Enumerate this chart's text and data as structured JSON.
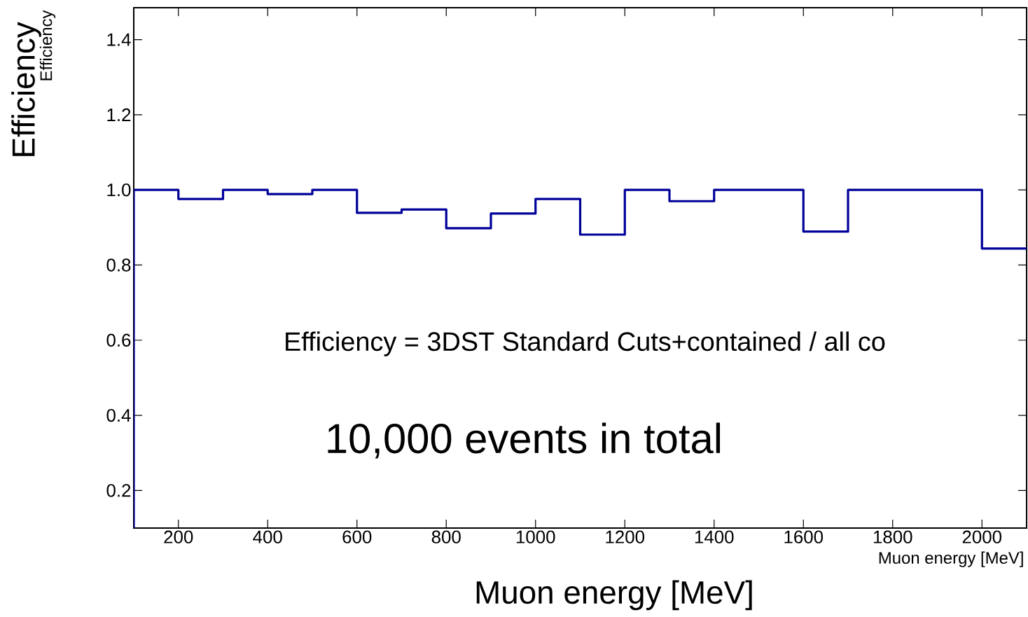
{
  "chart_data": {
    "type": "histogram",
    "xlabel": "Muon energy [MeV]",
    "ylabel": "Efficiency",
    "bins": [
      100,
      200,
      300,
      400,
      500,
      600,
      700,
      800,
      900,
      1000,
      1100,
      1200,
      1300,
      1400,
      1500,
      1600,
      1700,
      1800,
      1900,
      2000,
      2100
    ],
    "values": [
      1.0,
      0.976,
      1.0,
      0.989,
      1.0,
      0.939,
      0.948,
      0.898,
      0.937,
      0.976,
      0.881,
      1.0,
      0.97,
      1.0,
      1.0,
      0.889,
      1.0,
      1.0,
      1.0,
      0.844
    ],
    "color": "#000099",
    "xlim": [
      100,
      2100
    ],
    "ylim": [
      0.1,
      1.485
    ],
    "xticks": [
      200,
      400,
      600,
      800,
      1000,
      1200,
      1400,
      1600,
      1800,
      2000
    ],
    "yticks": [
      0.2,
      0.4,
      0.6,
      0.8,
      {
        "value": 1.0,
        "label": "1.0"
      },
      1.2,
      1.4
    ],
    "grid": false,
    "annotations": [
      "Efficiency",
      "Muon energy [MeV]",
      "Efficiency = 3DST Standard Cuts+contained / all co",
      "10,000 events in total"
    ]
  }
}
